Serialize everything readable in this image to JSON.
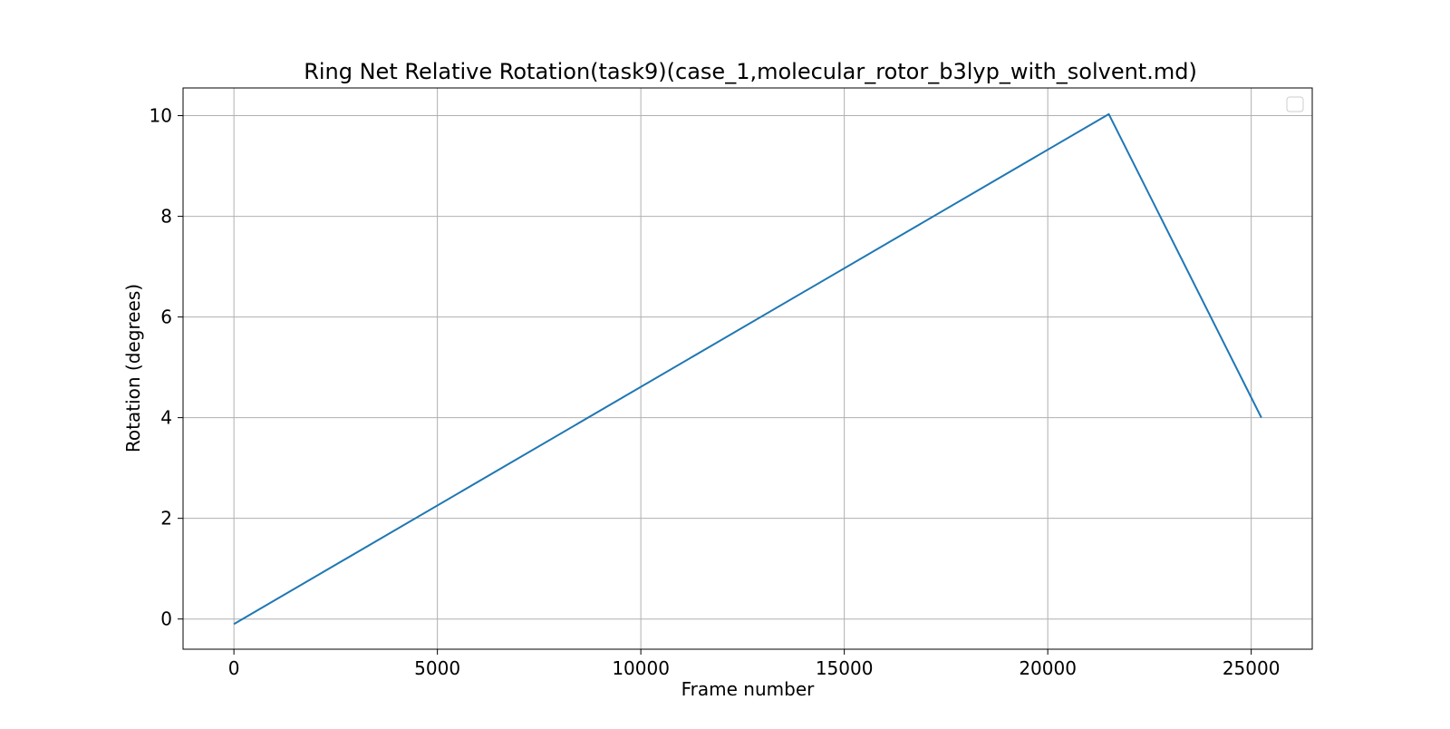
{
  "chart_data": {
    "type": "line",
    "title": "Ring Net Relative Rotation(task9)(case_1,molecular_rotor_b3lyp_with_solvent.md)",
    "xlabel": "Frame number",
    "ylabel": "Rotation (degrees)",
    "xlim": [
      -1250,
      26500
    ],
    "ylim": [
      -0.6,
      10.55
    ],
    "xticks": [
      0,
      5000,
      10000,
      15000,
      20000,
      25000
    ],
    "xtick_labels": [
      "0",
      "5000",
      "10000",
      "15000",
      "20000",
      "25000"
    ],
    "yticks": [
      0,
      2,
      4,
      6,
      8,
      10
    ],
    "ytick_labels": [
      "0",
      "2",
      "4",
      "6",
      "8",
      "10"
    ],
    "grid": true,
    "legend": "top-right",
    "series": [
      {
        "color": "#1f77b4",
        "x": [
          0,
          21500,
          25250
        ],
        "y": [
          -0.1,
          10.03,
          4.0
        ]
      }
    ]
  }
}
